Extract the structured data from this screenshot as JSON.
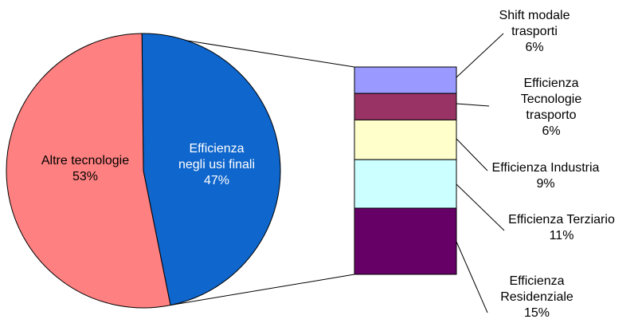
{
  "chart_data": {
    "type": "pie",
    "subtype": "bar-of-pie",
    "pie": [
      {
        "label_lines": [
          "Altre tecnologie"
        ],
        "value_label": "53%",
        "value": 53,
        "color": "#ff8080"
      },
      {
        "label_lines": [
          "Efficienza",
          "negli usi finali"
        ],
        "value_label": "47%",
        "value": 47,
        "color": "#0f66cc"
      }
    ],
    "breakdown": [
      {
        "label_lines": [
          "Shift modale",
          "trasporti"
        ],
        "value_label": "6%",
        "value": 6,
        "color": "#9999ff"
      },
      {
        "label_lines": [
          "Efficienza",
          "Tecnologie",
          "trasporto"
        ],
        "value_label": "6%",
        "value": 6,
        "color": "#993366"
      },
      {
        "label_lines": [
          "Efficienza Industria"
        ],
        "value_label": "9%",
        "value": 9,
        "color": "#ffffcc"
      },
      {
        "label_lines": [
          "Efficienza Terziario"
        ],
        "value_label": "11%",
        "value": 11,
        "color": "#ccffff"
      },
      {
        "label_lines": [
          "Efficienza",
          "Residenziale"
        ],
        "value_label": "15%",
        "value": 15,
        "color": "#660066"
      }
    ]
  }
}
